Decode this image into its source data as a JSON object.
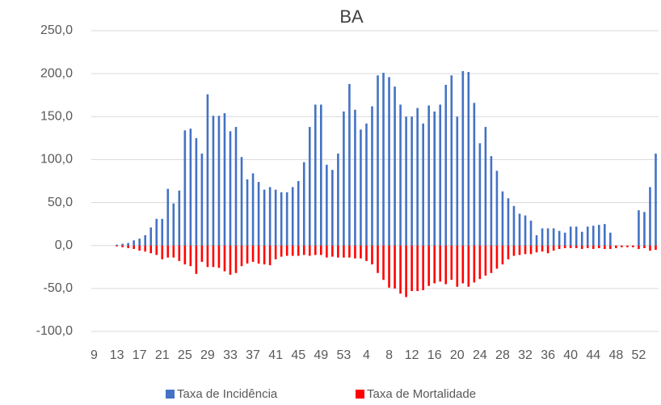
{
  "chart_data": {
    "type": "bar",
    "title": "BA",
    "categories": [
      "9",
      null,
      null,
      null,
      "13",
      null,
      null,
      null,
      "17",
      null,
      null,
      null,
      "21",
      null,
      null,
      null,
      "25",
      null,
      null,
      null,
      "29",
      null,
      null,
      null,
      "33",
      null,
      null,
      null,
      "37",
      null,
      null,
      null,
      "41",
      null,
      null,
      null,
      "45",
      null,
      null,
      null,
      "49",
      null,
      null,
      null,
      "53",
      null,
      null,
      null,
      "4",
      null,
      null,
      null,
      "8",
      null,
      null,
      null,
      "12",
      null,
      null,
      null,
      "16",
      null,
      null,
      null,
      "20",
      null,
      null,
      null,
      "24",
      null,
      null,
      null,
      "28",
      null,
      null,
      null,
      "32",
      null,
      null,
      null,
      "36",
      null,
      null,
      null,
      "40",
      null,
      null,
      null,
      "44",
      null,
      null,
      null,
      "48",
      null,
      null,
      null,
      "52",
      null,
      null,
      null
    ],
    "series": [
      {
        "name": "Taxa de Incidência",
        "color": "#4472c4",
        "values": [
          0,
          0,
          0,
          0,
          1,
          2,
          3,
          6,
          8,
          12,
          21,
          31,
          31,
          66,
          49,
          64,
          134,
          136,
          125,
          107,
          176,
          151,
          151,
          154,
          133,
          138,
          103,
          77,
          84,
          74,
          65,
          68,
          65,
          62,
          62,
          68,
          75,
          97,
          138,
          164,
          164,
          94,
          88,
          107,
          156,
          188,
          158,
          135,
          142,
          162,
          198,
          201,
          196,
          185,
          164,
          150,
          150,
          160,
          142,
          163,
          156,
          164,
          187,
          198,
          150,
          203,
          202,
          166,
          119,
          138,
          104,
          87,
          63,
          55,
          46,
          37,
          35,
          29,
          12,
          20,
          20,
          20,
          17,
          15,
          22,
          22,
          16,
          22,
          23,
          24,
          25,
          15,
          0,
          0,
          0,
          0,
          41,
          39,
          68,
          107
        ]
      },
      {
        "name": "Taxa de Mortalidade",
        "color": "#ff0000",
        "values": [
          0,
          0,
          0,
          0,
          -1,
          -2,
          -3,
          -4,
          -6,
          -7,
          -9,
          -11,
          -16,
          -14,
          -14,
          -18,
          -22,
          -24,
          -33,
          -19,
          -25,
          -25,
          -26,
          -30,
          -34,
          -32,
          -24,
          -21,
          -19,
          -21,
          -22,
          -23,
          -16,
          -13,
          -12,
          -12,
          -12,
          -11,
          -12,
          -11,
          -11,
          -14,
          -13,
          -14,
          -14,
          -14,
          -15,
          -15,
          -18,
          -22,
          -32,
          -40,
          -49,
          -50,
          -56,
          -60,
          -53,
          -53,
          -52,
          -47,
          -44,
          -42,
          -45,
          -40,
          -48,
          -44,
          -48,
          -43,
          -39,
          -35,
          -32,
          -27,
          -22,
          -16,
          -12,
          -11,
          -10,
          -10,
          -8,
          -7,
          -9,
          -6,
          -4,
          -3,
          -3,
          -3,
          -4,
          -3,
          -4,
          -3,
          -4,
          -4,
          -3,
          -2,
          -2,
          -2,
          -4,
          -3,
          -6,
          -5
        ]
      }
    ],
    "ylim": [
      -100,
      250
    ],
    "yticks": [
      {
        "value": -100,
        "label": "-100,0"
      },
      {
        "value": -50,
        "label": "-50,0"
      },
      {
        "value": 0,
        "label": "0,0"
      },
      {
        "value": 50,
        "label": "50,0"
      },
      {
        "value": 100,
        "label": "100,0"
      },
      {
        "value": 150,
        "label": "150,0"
      },
      {
        "value": 200,
        "label": "200,0"
      },
      {
        "value": 250,
        "label": "250,0"
      }
    ],
    "grid": true,
    "legend": "bottom"
  }
}
